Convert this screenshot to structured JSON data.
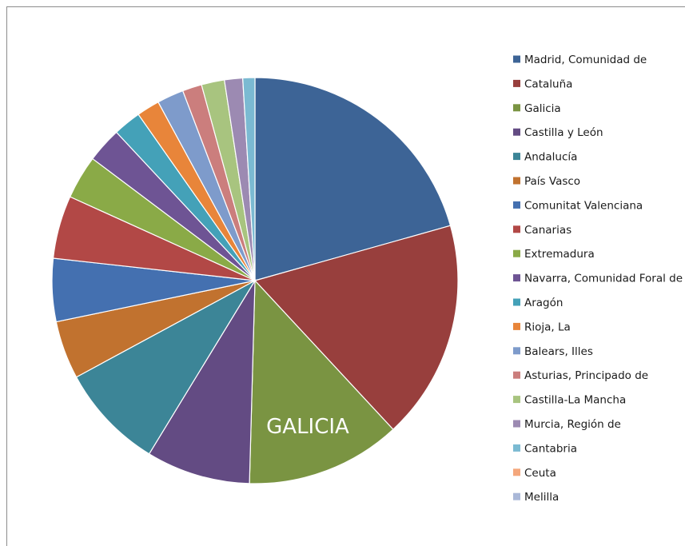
{
  "chart_data": {
    "type": "pie",
    "title": "",
    "categories": [
      "Madrid, Comunidad de",
      "Cataluña",
      "Galicia",
      "Castilla y León",
      "Andalucía",
      "País Vasco",
      "Comunitat Valenciana",
      "Canarias",
      "Extremadura",
      "Navarra, Comunidad Foral de",
      "Aragón",
      "Rioja, La",
      "Balears, Illes",
      "Asturias, Principado de",
      "Castilla-La Mancha",
      "Murcia, Región de",
      "Cantabria",
      "Ceuta",
      "Melilla"
    ],
    "values": [
      21.4,
      18.1,
      12.8,
      8.6,
      8.7,
      4.8,
      5.2,
      5.2,
      3.6,
      2.9,
      2.3,
      1.9,
      2.2,
      1.6,
      1.9,
      1.5,
      1.0,
      0.0,
      0.0
    ],
    "colors": [
      "#3d6496",
      "#983f3d",
      "#7a9442",
      "#634b83",
      "#3c8597",
      "#c1722f",
      "#4470b0",
      "#b24846",
      "#8aaa47",
      "#6e5494",
      "#44a1b8",
      "#e8853a",
      "#7e9bcb",
      "#cb7e7d",
      "#a8c47f",
      "#9c8ab2",
      "#7bbad2",
      "#f4a77c",
      "#aab8d8"
    ],
    "slice_label": "GALICIA",
    "legend_position": "right"
  }
}
